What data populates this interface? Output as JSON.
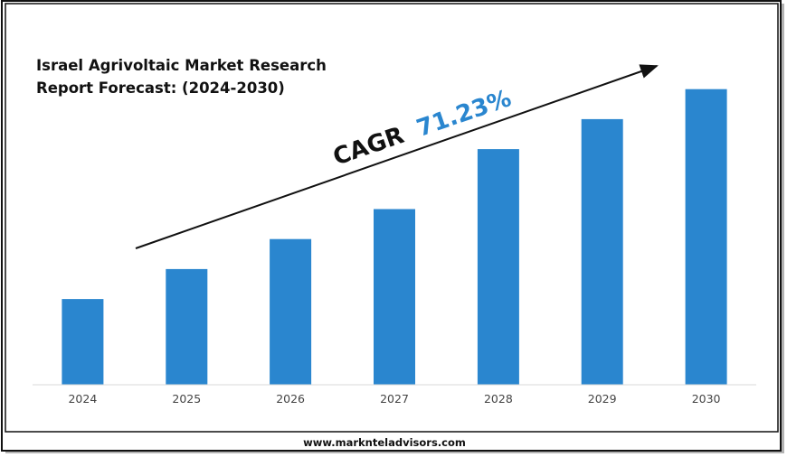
{
  "chart_data": {
    "type": "bar",
    "title_lines": [
      "Israel Agrivoltaic Market Research",
      "Report Forecast: (2024-2030)"
    ],
    "categories": [
      "2024",
      "2025",
      "2026",
      "2027",
      "2028",
      "2029",
      "2030"
    ],
    "values": [
      1.0,
      1.35,
      1.7,
      2.05,
      2.75,
      3.1,
      3.45
    ],
    "ylim": [
      0,
      3.5
    ],
    "grid": false,
    "legend": "none",
    "annotation": {
      "label": "CAGR",
      "value": "71.23%"
    },
    "bar_color": "#2a86cf",
    "accent_color": "#2a86cf"
  },
  "footer": {
    "url": "www.marknteladvisors.com"
  }
}
